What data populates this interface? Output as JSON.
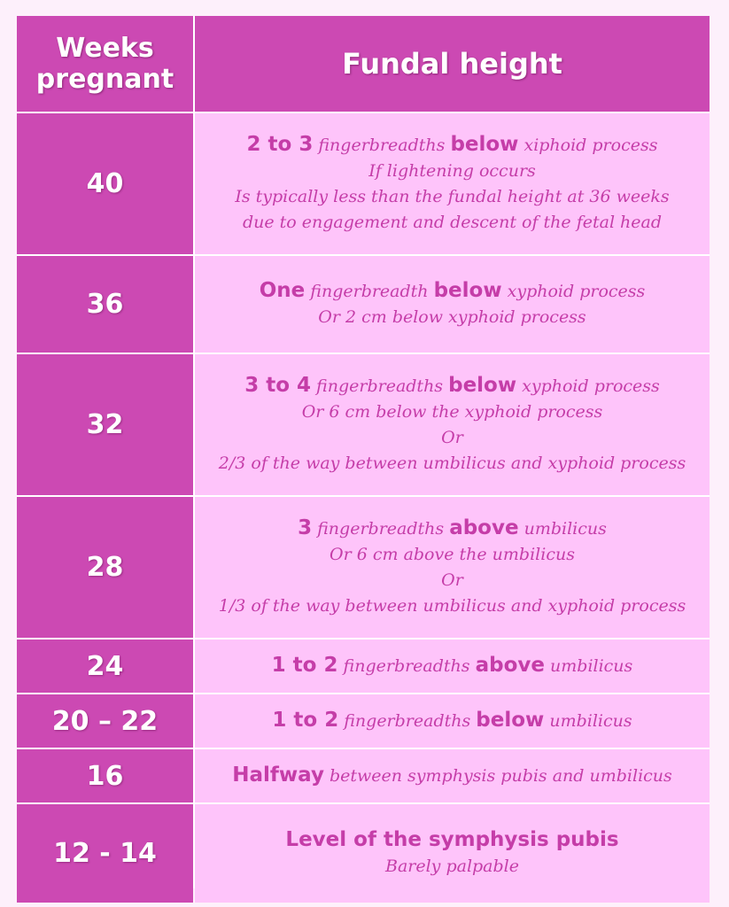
{
  "header": {
    "weeks_line1": "Weeks",
    "weeks_line2": "pregnant",
    "fundal": "Fundal height"
  },
  "rows": [
    {
      "weeks": "40",
      "lines": [
        [
          "2 to 3",
          " fingerbreadths ",
          "below",
          " xiphoid process"
        ],
        [
          "",
          "If lightening occurs"
        ],
        [
          "",
          "Is typically less than the fundal height at 36 weeks"
        ],
        [
          "",
          "due to engagement and descent of the fetal head"
        ]
      ]
    },
    {
      "weeks": "36",
      "lines": [
        [
          "One",
          " fingerbreadth ",
          "below",
          " xyphoid process"
        ],
        [
          "",
          "Or 2 cm below xyphoid process"
        ]
      ]
    },
    {
      "weeks": "32",
      "lines": [
        [
          "3 to 4",
          " fingerbreadths ",
          "below",
          " xyphoid process"
        ],
        [
          "",
          "Or 6 cm below the xyphoid process"
        ],
        [
          "",
          "Or"
        ],
        [
          "",
          "2/3 of the way between umbilicus and xyphoid process"
        ]
      ]
    },
    {
      "weeks": "28",
      "lines": [
        [
          "3",
          " fingerbreadths ",
          "above",
          " umbilicus"
        ],
        [
          "",
          "Or 6 cm above the umbilicus"
        ],
        [
          "",
          "Or"
        ],
        [
          "",
          "1/3 of the way between umbilicus and xyphoid process"
        ]
      ]
    },
    {
      "weeks": "24",
      "lines": [
        [
          "1 to 2",
          " fingerbreadths ",
          "above",
          " umbilicus"
        ]
      ]
    },
    {
      "weeks": "20 – 22",
      "lines": [
        [
          "1 to 2",
          " fingerbreadths ",
          "below",
          " umbilicus"
        ]
      ]
    },
    {
      "weeks": "16",
      "lines": [
        [
          "Halfway",
          " between symphysis pubis and umbilicus"
        ]
      ]
    },
    {
      "weeks": "12 - 14",
      "lines": [
        [
          "Level of the symphysis pubis"
        ],
        [
          "",
          "Barely palpable"
        ]
      ]
    }
  ]
}
